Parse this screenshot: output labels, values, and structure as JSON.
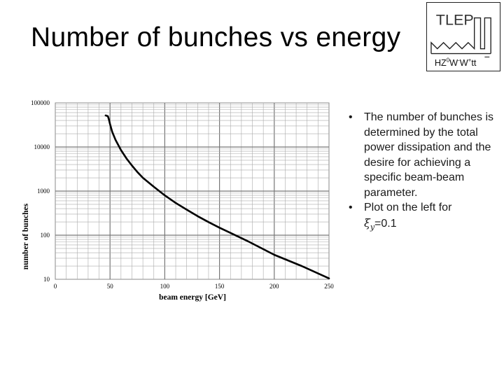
{
  "slide": {
    "title": "Number of bunches vs energy"
  },
  "logo": {
    "name": "TLEP",
    "particles": [
      "H",
      "Z",
      "0",
      "W",
      "-",
      "W",
      "+",
      "t",
      "t"
    ]
  },
  "bullets": [
    {
      "text": "The number of bunches is determined by the total power dissipation and the desire for achieving a specific beam-beam parameter."
    },
    {
      "text": "Plot on the left for",
      "symbol": "ξ",
      "subscript": "y",
      "value": "=0.1"
    }
  ],
  "chart_data": {
    "type": "line",
    "title": "",
    "xlabel": "beam energy [GeV]",
    "ylabel": "number of bunches",
    "xlim": [
      0,
      250
    ],
    "ylim": [
      10,
      100000
    ],
    "yscale": "log",
    "grid": true,
    "x_ticks": [
      0,
      50,
      100,
      150,
      200,
      250
    ],
    "x_tick_labels": [
      "0",
      "50",
      "100",
      "150",
      "200",
      "250"
    ],
    "y_ticks": [
      10,
      100,
      1000,
      10000,
      100000
    ],
    "y_tick_labels": [
      "10",
      "100",
      "1000",
      "10000",
      "100000"
    ],
    "series": [
      {
        "name": "number of bunches",
        "color": "#000000",
        "x": [
          46,
          48,
          49,
          50,
          52,
          55,
          60,
          65,
          70,
          75,
          80,
          90,
          100,
          110,
          120,
          130,
          140,
          150,
          160,
          175,
          200,
          225,
          250
        ],
        "y": [
          52000,
          50000,
          42000,
          33000,
          22000,
          14500,
          8500,
          5500,
          3800,
          2700,
          2000,
          1250,
          800,
          540,
          380,
          270,
          198,
          148,
          113,
          75,
          36,
          20,
          10.5
        ]
      }
    ]
  }
}
